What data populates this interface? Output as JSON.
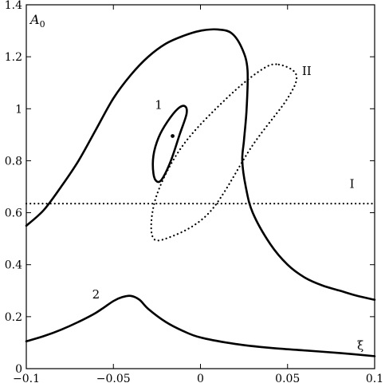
{
  "chart_data": {
    "type": "line",
    "title": "",
    "xlabel": "ξ",
    "ylabel": "A",
    "ylabel_subscript": "0",
    "xlim": [
      -0.1,
      0.1
    ],
    "ylim": [
      0,
      1.4
    ],
    "grid": false,
    "x_ticks": [
      -0.1,
      -0.05,
      0,
      0.05,
      0.1
    ],
    "x_tick_labels": [
      "−0.1",
      "−0.05",
      "0",
      "0.05",
      "0.1"
    ],
    "y_ticks": [
      0,
      0.2,
      0.4,
      0.6,
      0.8,
      1,
      1.2,
      1.4
    ],
    "y_tick_labels": [
      "0",
      "0.2",
      "0.4",
      "0.6",
      "0.8",
      "1",
      "1.2",
      "1.4"
    ],
    "series": [
      {
        "style": "solid",
        "x": [
          -0.1,
          -0.09,
          -0.08,
          -0.07,
          -0.06,
          -0.05,
          -0.04,
          -0.03,
          -0.02,
          -0.01,
          0.0,
          0.01,
          0.018,
          0.024,
          0.027,
          0.0265,
          0.025,
          0.024,
          0.026,
          0.03,
          0.04,
          0.05,
          0.06,
          0.07,
          0.08,
          0.09,
          0.1
        ],
        "y": [
          0.55,
          0.61,
          0.7,
          0.8,
          0.92,
          1.04,
          1.13,
          1.2,
          1.25,
          1.28,
          1.3,
          1.305,
          1.29,
          1.23,
          1.15,
          1.0,
          0.88,
          0.8,
          0.7,
          0.6,
          0.48,
          0.4,
          0.35,
          0.32,
          0.3,
          0.28,
          0.265
        ]
      },
      {
        "name": "I",
        "style": "dotted",
        "x": [
          -0.1,
          0.1
        ],
        "y": [
          0.635,
          0.635
        ]
      },
      {
        "name": "II",
        "style": "dotted",
        "closed": true,
        "x": [
          0.045,
          0.055,
          0.05,
          0.03,
          0.005,
          -0.02,
          -0.028,
          -0.025,
          -0.01,
          0.015,
          0.035,
          0.045
        ],
        "y": [
          1.17,
          1.13,
          1.04,
          0.86,
          0.6,
          0.5,
          0.52,
          0.67,
          0.86,
          1.04,
          1.15,
          1.17
        ]
      },
      {
        "name": "1",
        "style": "solid",
        "closed": true,
        "x": [
          -0.008,
          -0.009,
          -0.013,
          -0.019,
          -0.024,
          -0.027,
          -0.027,
          -0.025,
          -0.022,
          -0.017,
          -0.012,
          -0.008
        ],
        "y": [
          0.98,
          1.01,
          1.0,
          0.95,
          0.89,
          0.82,
          0.75,
          0.72,
          0.73,
          0.8,
          0.9,
          0.98
        ]
      },
      {
        "name": "2",
        "style": "solid",
        "x": [
          -0.1,
          -0.09,
          -0.08,
          -0.07,
          -0.06,
          -0.05,
          -0.045,
          -0.04,
          -0.035,
          -0.03,
          -0.02,
          -0.01,
          0.0,
          0.02,
          0.04,
          0.06,
          0.08,
          0.1
        ],
        "y": [
          0.105,
          0.125,
          0.15,
          0.18,
          0.215,
          0.26,
          0.275,
          0.28,
          0.265,
          0.23,
          0.18,
          0.145,
          0.12,
          0.095,
          0.08,
          0.07,
          0.06,
          0.048
        ]
      }
    ],
    "points": [
      {
        "x": -0.016,
        "y": 0.895
      }
    ],
    "annotations": [
      {
        "text": "1",
        "x": -0.024,
        "y": 1.0
      },
      {
        "text": "2",
        "x": -0.06,
        "y": 0.27
      },
      {
        "text": "I",
        "x": 0.087,
        "y": 0.695
      },
      {
        "text": "II",
        "x": 0.061,
        "y": 1.13
      }
    ]
  }
}
